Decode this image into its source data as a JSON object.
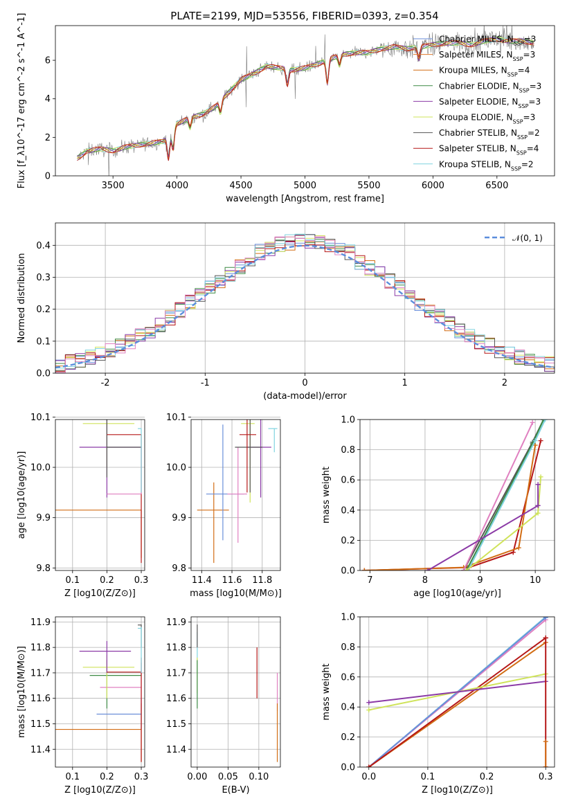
{
  "colors": {
    "Chabrier MILES": "#6a8ed9",
    "Salpeter MILES": "#e07a2a",
    "Kroupa MILES": "#d26d14",
    "Chabrier ELODIE": "#3d8a44",
    "Salpeter ELODIE": "#8b3aa6",
    "Kroupa ELODIE": "#cfe35a",
    "Chabrier STELIB": "#555555",
    "Salpeter STELIB": "#b51717",
    "Kroupa STELIB": "#7fd3df",
    "pink": "#e080c0",
    "normal": "#5b8ddc"
  },
  "chart_data": [
    {
      "id": "spectrum",
      "type": "line",
      "title": "PLATE=2199, MJD=53556, FIBERID=0393, z=0.354",
      "xlabel": "wavelength [Angstrom, rest frame]",
      "ylabel": "Flux [f_λ10^-17 erg cm^-2 s^-1 A^-1]",
      "xlim": [
        3050,
        6950
      ],
      "ylim": [
        0,
        7.8
      ],
      "xticks": [
        3500,
        4000,
        4500,
        5000,
        5500,
        6000,
        6500
      ],
      "yticks": [
        0,
        2,
        4,
        6
      ],
      "legend": [
        "Chabrier MILES, N_SSP=3",
        "Salpeter MILES, N_SSP=3",
        "Kroupa MILES, N_SSP=4",
        "Chabrier ELODIE, N_SSP=3",
        "Salpeter ELODIE, N_SSP=3",
        "Kroupa ELODIE, N_SSP=3",
        "Chabrier STELIB, N_SSP=2",
        "Salpeter STELIB, N_SSP=4",
        "Kroupa STELIB, N_SSP=2"
      ],
      "legend_location": "upper right",
      "model_anchors": {
        "x": [
          3220,
          3300,
          3400,
          3500,
          3600,
          3700,
          3800,
          3900,
          4000,
          4100,
          4200,
          4300,
          4400,
          4500,
          4600,
          4700,
          4800,
          4900,
          5000,
          5100,
          5200,
          5300,
          5400,
          5500,
          5600,
          5700,
          5800,
          5900,
          6000,
          6100,
          6200,
          6300,
          6400,
          6500,
          6600,
          6700,
          6790
        ],
        "y": [
          0.9,
          1.3,
          1.4,
          1.3,
          1.5,
          1.6,
          1.7,
          1.8,
          2.7,
          3.0,
          3.2,
          3.6,
          4.3,
          5.0,
          5.3,
          5.7,
          5.6,
          5.5,
          5.6,
          5.8,
          6.1,
          6.3,
          6.4,
          6.4,
          6.6,
          6.7,
          6.6,
          6.7,
          6.8,
          6.9,
          6.9,
          6.8,
          7.0,
          7.1,
          7.0,
          7.0,
          6.9
        ]
      }
    },
    {
      "id": "residuals",
      "type": "histogram",
      "xlabel": "(data-model)/error",
      "ylabel": "Normed distribution",
      "xlim": [
        -2.5,
        2.5
      ],
      "ylim": [
        0,
        0.47
      ],
      "xticks": [
        -2,
        -1,
        0,
        1,
        2
      ],
      "yticks": [
        0.0,
        0.1,
        0.2,
        0.3,
        0.4
      ],
      "legend": [
        "𝒩(0, 1)"
      ],
      "legend_location": "upper right",
      "bin_width": 0.1,
      "normal_mean": 0,
      "normal_sigma": 1
    },
    {
      "id": "age_vs_Z",
      "type": "errorbar",
      "xlabel": "Z [log10(Z/Z⊙)]",
      "ylabel": "age  [log10(age/yr)]",
      "xlim": [
        0.05,
        0.31
      ],
      "ylim": [
        9.795,
        10.095
      ],
      "xticks": [
        0.1,
        0.2,
        0.3
      ],
      "yticks": [
        9.8,
        9.9,
        10.0,
        10.1
      ],
      "points": [
        {
          "c": "Kroupa MILES",
          "x": 0.3,
          "y": 9.915,
          "xl": 0.05,
          "xh": 0.3,
          "yl": 9.82,
          "yh": 9.915
        },
        {
          "c": "Kroupa ELODIE",
          "x": 0.2,
          "y": 10.087,
          "xl": 0.13,
          "xh": 0.28,
          "yl": 10.0,
          "yh": 10.12
        },
        {
          "c": "Salpeter ELODIE",
          "x": 0.2,
          "y": 10.04,
          "xl": 0.12,
          "xh": 0.3,
          "yl": 9.94,
          "yh": 10.14
        },
        {
          "c": "Chabrier STELIB",
          "x": 0.2,
          "y": 10.04,
          "xl": 0.2,
          "xh": 0.3,
          "yl": 9.98,
          "yh": 10.135
        },
        {
          "c": "Salpeter STELIB",
          "x": 0.3,
          "y": 10.065,
          "xl": 0.2,
          "xh": 0.3,
          "yl": 9.81,
          "yh": 10.065
        },
        {
          "c": "pink",
          "x": 0.3,
          "y": 9.947,
          "xl": 0.2,
          "xh": 0.3,
          "yl": 9.947,
          "yh": 10.04
        },
        {
          "c": "Kroupa STELIB",
          "x": 0.3,
          "y": 10.077,
          "xl": 0.29,
          "xh": 0.3,
          "yl": 9.95,
          "yh": 10.077
        }
      ]
    },
    {
      "id": "age_vs_mass",
      "type": "errorbar",
      "xlabel": "mass [log10(M/M⊙)]",
      "ylabel": "",
      "xlim": [
        11.33,
        11.92
      ],
      "ylim": [
        9.795,
        10.095
      ],
      "xticks": [
        11.4,
        11.6,
        11.8
      ],
      "yticks": [
        9.8,
        9.9,
        10.0,
        10.1
      ],
      "points": [
        {
          "c": "Kroupa MILES",
          "x": 11.48,
          "y": 9.915,
          "xl": 11.37,
          "xh": 11.58,
          "yl": 9.81,
          "yh": 9.97
        },
        {
          "c": "Chabrier MILES",
          "x": 11.54,
          "y": 9.947,
          "xl": 11.43,
          "xh": 11.68,
          "yl": 9.855,
          "yh": 10.085
        },
        {
          "c": "pink",
          "x": 11.64,
          "y": 9.947,
          "xl": 11.57,
          "xh": 11.7,
          "yl": 9.85,
          "yh": 10.04
        },
        {
          "c": "Kroupa ELODIE",
          "x": 11.72,
          "y": 10.087,
          "xl": 11.66,
          "xh": 11.75,
          "yl": 9.93,
          "yh": 10.12
        },
        {
          "c": "Salpeter ELODIE",
          "x": 11.79,
          "y": 10.04,
          "xl": 11.7,
          "xh": 11.86,
          "yl": 9.94,
          "yh": 10.14
        },
        {
          "c": "Chabrier STELIB",
          "x": 11.72,
          "y": 10.04,
          "xl": 11.62,
          "xh": 11.8,
          "yl": 9.95,
          "yh": 10.135
        },
        {
          "c": "Salpeter STELIB",
          "x": 11.7,
          "y": 10.065,
          "xl": 11.65,
          "xh": 11.76,
          "yl": 9.95,
          "yh": 10.17
        },
        {
          "c": "Kroupa STELIB",
          "x": 11.88,
          "y": 10.077,
          "xl": 11.84,
          "xh": 11.9,
          "yl": 10.03,
          "yh": 10.077
        }
      ]
    },
    {
      "id": "mass_weight_vs_age",
      "type": "line",
      "xlabel": "age  [log10(age/yr)]",
      "ylabel": "mass weight",
      "xlim": [
        6.82,
        10.35
      ],
      "ylim": [
        0,
        1.0
      ],
      "xticks": [
        7,
        8,
        9,
        10
      ],
      "yticks": [
        0.0,
        0.2,
        0.4,
        0.6,
        0.8,
        1.0
      ],
      "series": [
        {
          "c": "Salpeter STELIB",
          "x": [
            6.9,
            8.8,
            9.6,
            10.1
          ],
          "y": [
            0.0,
            0.02,
            0.12,
            0.86
          ]
        },
        {
          "c": "Kroupa MILES",
          "x": [
            6.9,
            8.7,
            9.7,
            10.0
          ],
          "y": [
            0.0,
            0.02,
            0.15,
            0.83
          ]
        },
        {
          "c": "Chabrier STELIB",
          "x": [
            8.7,
            9.95,
            10.15
          ],
          "y": [
            0.0,
            0.85,
            1.0
          ]
        },
        {
          "c": "Chabrier ELODIE",
          "x": [
            8.75,
            9.95,
            10.15
          ],
          "y": [
            0.0,
            0.84,
            1.0
          ]
        },
        {
          "c": "Kroupa STELIB",
          "x": [
            8.78,
            10.0,
            10.18
          ],
          "y": [
            0.0,
            0.86,
            1.0
          ]
        },
        {
          "c": "pink",
          "x": [
            8.7,
            9.95
          ],
          "y": [
            0.0,
            0.98
          ]
        },
        {
          "c": "Kroupa ELODIE",
          "x": [
            8.75,
            10.05,
            10.1
          ],
          "y": [
            0.0,
            0.38,
            0.62
          ]
        },
        {
          "c": "Salpeter ELODIE",
          "x": [
            8.05,
            10.05
          ],
          "y": [
            0.0,
            0.43
          ]
        },
        {
          "c": "Salpeter ELODIE",
          "x": [
            10.05,
            10.05
          ],
          "y": [
            0.43,
            0.57
          ]
        }
      ]
    },
    {
      "id": "mass_vs_Z",
      "type": "errorbar",
      "xlabel": "Z [log10(Z/Z⊙)]",
      "ylabel": "mass [log10(M/M⊙)]",
      "xlim": [
        0.05,
        0.31
      ],
      "ylim": [
        11.33,
        11.92
      ],
      "xticks": [
        0.1,
        0.2,
        0.3
      ],
      "yticks": [
        11.4,
        11.5,
        11.6,
        11.7,
        11.8,
        11.9
      ],
      "points": [
        {
          "c": "Kroupa MILES",
          "x": 0.3,
          "y": 11.478,
          "xl": 0.05,
          "xh": 0.3,
          "yl": 11.35,
          "yh": 11.58
        },
        {
          "c": "Chabrier MILES",
          "x": 0.3,
          "y": 11.538,
          "xl": 0.17,
          "xh": 0.3,
          "yl": 11.48,
          "yh": 11.6
        },
        {
          "c": "pink",
          "x": 0.3,
          "y": 11.643,
          "xl": 0.18,
          "xh": 0.3,
          "yl": 11.55,
          "yh": 11.74
        },
        {
          "c": "Chabrier ELODIE",
          "x": 0.2,
          "y": 11.69,
          "xl": 0.15,
          "xh": 0.3,
          "yl": 11.56,
          "yh": 11.75
        },
        {
          "c": "Kroupa ELODIE",
          "x": 0.2,
          "y": 11.722,
          "xl": 0.13,
          "xh": 0.28,
          "yl": 11.6,
          "yh": 11.77
        },
        {
          "c": "Salpeter ELODIE",
          "x": 0.2,
          "y": 11.785,
          "xl": 0.12,
          "xh": 0.27,
          "yl": 11.7,
          "yh": 11.825
        },
        {
          "c": "Salpeter STELIB",
          "x": 0.3,
          "y": 11.703,
          "xl": 0.2,
          "xh": 0.3,
          "yl": 11.35,
          "yh": 11.76
        },
        {
          "c": "Chabrier STELIB",
          "x": 0.3,
          "y": 11.888,
          "xl": 0.29,
          "xh": 0.3,
          "yl": 11.8,
          "yh": 11.89
        },
        {
          "c": "Kroupa STELIB",
          "x": 0.3,
          "y": 11.875,
          "xl": 0.29,
          "xh": 0.3,
          "yl": 11.7,
          "yh": 11.88
        }
      ]
    },
    {
      "id": "mass_vs_ebv",
      "type": "errorbar",
      "xlabel": "E(B-V)",
      "ylabel": "",
      "xlim": [
        -0.01,
        0.135
      ],
      "ylim": [
        11.33,
        11.92
      ],
      "xticks": [
        0.0,
        0.05,
        0.1
      ],
      "yticks": [
        11.4,
        11.5,
        11.6,
        11.7,
        11.8,
        11.9
      ],
      "points": [
        {
          "c": "Kroupa STELIB",
          "x": 0.0,
          "y": 11.85,
          "xl": 0.0,
          "xh": 0.0,
          "yl": 11.7,
          "yh": 11.86
        },
        {
          "c": "Kroupa ELODIE",
          "x": 0.0,
          "y": 11.72,
          "xl": 0.0,
          "xh": 0.0,
          "yl": 11.62,
          "yh": 11.76
        },
        {
          "c": "Chabrier ELODIE",
          "x": 0.0,
          "y": 11.69,
          "xl": 0.0,
          "xh": 0.0,
          "yl": 11.56,
          "yh": 11.75
        },
        {
          "c": "Chabrier STELIB",
          "x": 0.0,
          "y": 11.888,
          "xl": 0.0,
          "xh": 0.0,
          "yl": 11.8,
          "yh": 11.89
        },
        {
          "c": "Salpeter STELIB",
          "x": 0.097,
          "y": 11.7,
          "xl": 0.097,
          "xh": 0.097,
          "yl": 11.6,
          "yh": 11.8
        },
        {
          "c": "pink",
          "x": 0.13,
          "y": 11.643,
          "xl": 0.13,
          "xh": 0.13,
          "yl": 11.55,
          "yh": 11.7
        },
        {
          "c": "Kroupa MILES",
          "x": 0.13,
          "y": 11.478,
          "xl": 0.13,
          "xh": 0.13,
          "yl": 11.35,
          "yh": 11.58
        }
      ]
    },
    {
      "id": "mass_weight_vs_Z",
      "type": "line",
      "xlabel": "Z [log10(Z/Z⊙)]",
      "ylabel": "mass weight",
      "xlim": [
        -0.015,
        0.315
      ],
      "ylim": [
        0,
        1.0
      ],
      "xticks": [
        0.0,
        0.1,
        0.2,
        0.3
      ],
      "yticks": [
        0.0,
        0.2,
        0.4,
        0.6,
        0.8,
        1.0
      ],
      "series": [
        {
          "c": "Kroupa STELIB",
          "x": [
            0.0,
            0.3
          ],
          "y": [
            0.0,
            1.0
          ]
        },
        {
          "c": "pink",
          "x": [
            0.0,
            0.3
          ],
          "y": [
            0.0,
            0.98
          ]
        },
        {
          "c": "Chabrier MILES",
          "x": [
            0.0,
            0.3
          ],
          "y": [
            0.0,
            0.995
          ]
        },
        {
          "c": "Kroupa MILES",
          "x": [
            0.0,
            0.3
          ],
          "y": [
            0.0,
            0.83
          ]
        },
        {
          "c": "Salpeter STELIB",
          "x": [
            0.0,
            0.3
          ],
          "y": [
            0.0,
            0.86
          ]
        },
        {
          "c": "Kroupa ELODIE",
          "x": [
            0.0,
            0.3
          ],
          "y": [
            0.38,
            0.62
          ]
        },
        {
          "c": "Salpeter ELODIE",
          "x": [
            0.0,
            0.3
          ],
          "y": [
            0.43,
            0.57
          ]
        },
        {
          "c": "Salpeter STELIB",
          "x": [
            0.3,
            0.3
          ],
          "y": [
            0.0,
            0.86
          ]
        },
        {
          "c": "Kroupa MILES",
          "x": [
            0.3,
            0.3
          ],
          "y": [
            0.0,
            0.17
          ]
        }
      ]
    }
  ]
}
